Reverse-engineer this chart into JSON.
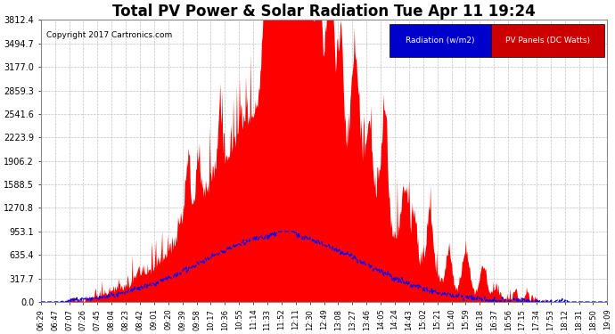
{
  "title": "Total PV Power & Solar Radiation Tue Apr 11 19:24",
  "copyright": "Copyright 2017 Cartronics.com",
  "legend_radiation": "Radiation (w/m2)",
  "legend_pv": "PV Panels (DC Watts)",
  "legend_radiation_bg": "#0000cc",
  "legend_pv_bg": "#cc0000",
  "legend_text_color": "#ffffff",
  "y_ticks": [
    0.0,
    317.7,
    635.4,
    953.1,
    1270.8,
    1588.5,
    1906.2,
    2223.9,
    2541.6,
    2859.3,
    3177.0,
    3494.7,
    3812.4
  ],
  "x_tick_labels": [
    "06:29",
    "06:47",
    "07:07",
    "07:26",
    "07:45",
    "08:04",
    "08:23",
    "08:42",
    "09:01",
    "09:20",
    "09:39",
    "09:58",
    "10:17",
    "10:36",
    "10:55",
    "11:14",
    "11:33",
    "11:52",
    "12:11",
    "12:30",
    "12:49",
    "13:08",
    "13:27",
    "13:46",
    "14:05",
    "14:24",
    "14:43",
    "15:02",
    "15:21",
    "15:40",
    "15:59",
    "16:18",
    "16:37",
    "16:56",
    "17:15",
    "17:34",
    "17:53",
    "18:12",
    "18:31",
    "18:50",
    "19:09"
  ],
  "background_color": "#ffffff",
  "plot_bg_color": "#ffffff",
  "grid_color": "#bbbbbb",
  "red_fill_color": "#ff0000",
  "blue_line_color": "#0000ff",
  "title_fontsize": 12,
  "ymax": 3812.4,
  "ymin": 0.0
}
